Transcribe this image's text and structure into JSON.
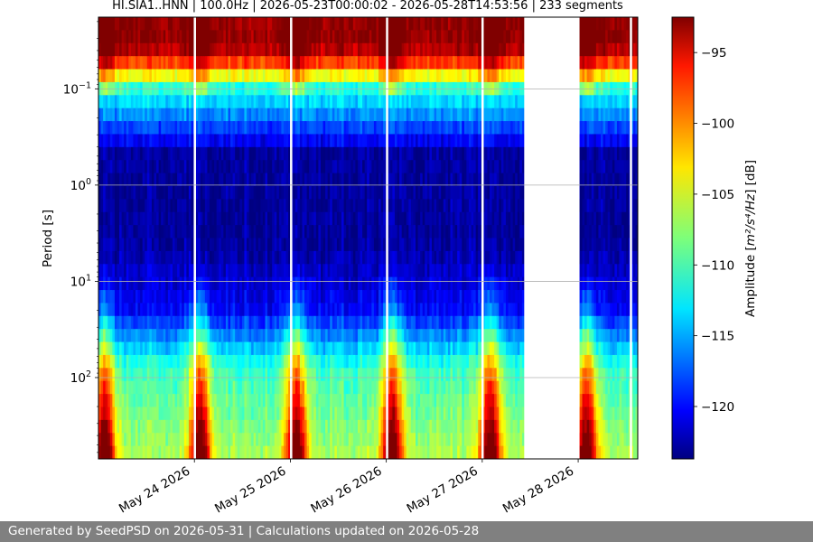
{
  "chart_data": {
    "type": "heatmap",
    "title": "HI.SIA1..HNN | 100.0Hz | 2026-05-23T00:00:02 - 2026-05-28T14:53:56 | 233 segments",
    "ylabel": "Period [s]",
    "colorbar_label_main": "Amplitude [",
    "colorbar_label_unit": "m²/s⁴/Hz",
    "colorbar_label_end": "] [dB]",
    "y_scale": "log",
    "y_inverted": true,
    "ylim": [
      0.018,
      700
    ],
    "x_start": "2026-05-23T00:00:02",
    "x_end": "2026-05-28T14:53:56",
    "segments": 233,
    "color_range": [
      -123.7,
      -92.5
    ],
    "colormap": "jet",
    "grid": true,
    "x_tick_labels": [
      {
        "date": "2026-05-24",
        "label": "May 24 2026"
      },
      {
        "date": "2026-05-25",
        "label": "May 25 2026"
      },
      {
        "date": "2026-05-26",
        "label": "May 26 2026"
      },
      {
        "date": "2026-05-27",
        "label": "May 27 2026"
      },
      {
        "date": "2026-05-28",
        "label": "May 28 2026"
      }
    ],
    "y_ticks": [
      {
        "value": 0.1,
        "base": "10",
        "exp": "−1"
      },
      {
        "value": 1,
        "base": "10",
        "exp": "0"
      },
      {
        "value": 10,
        "base": "10",
        "exp": "1"
      },
      {
        "value": 100,
        "base": "10",
        "exp": "2"
      }
    ],
    "colorbar_ticks": [
      {
        "value": -95,
        "label": "−95"
      },
      {
        "value": -100,
        "label": "−100"
      },
      {
        "value": -105,
        "label": "−105"
      },
      {
        "value": -110,
        "label": "−110"
      },
      {
        "value": -115,
        "label": "−115"
      },
      {
        "value": -120,
        "label": "−120"
      }
    ],
    "data_gaps": [
      {
        "start": "2026-05-23T23:50:00",
        "end": "2026-05-24T00:02:00"
      },
      {
        "start": "2026-05-24T23:55:00",
        "end": "2026-05-25T00:04:00"
      },
      {
        "start": "2026-05-25T23:55:00",
        "end": "2026-05-26T00:05:00"
      },
      {
        "start": "2026-05-26T23:48:00",
        "end": "2026-05-26T23:58:00"
      },
      {
        "start": "2026-05-27T10:30:00",
        "end": "2026-05-28T00:20:00"
      },
      {
        "start": "2026-05-28T12:55:00",
        "end": "2026-05-28T13:05:00"
      }
    ],
    "daily_noise_peaks": [
      "2026-05-23T01:30:00",
      "2026-05-24T01:30:00",
      "2026-05-25T01:30:00",
      "2026-05-26T01:30:00",
      "2026-05-27T02:00:00",
      "2026-05-28T02:00:00"
    ]
  },
  "footer": {
    "text": "Generated by SeedPSD on 2026-05-31 | Calculations updated on 2026-05-28"
  }
}
